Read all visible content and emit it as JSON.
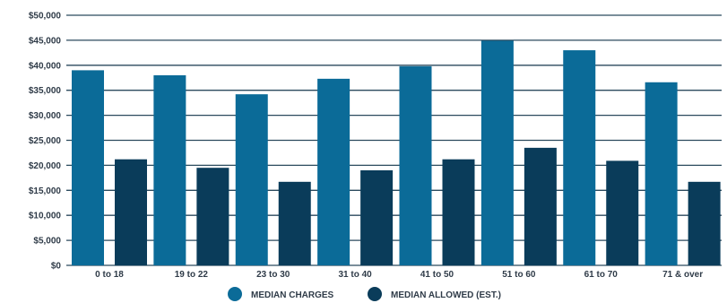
{
  "chart_data": {
    "type": "bar",
    "title": "",
    "xlabel": "",
    "ylabel": "",
    "categories": [
      "0 to 18",
      "19 to 22",
      "23 to 30",
      "31 to 40",
      "41 to 50",
      "51 to 60",
      "61 to 70",
      "71 & over"
    ],
    "series": [
      {
        "name": "MEDIAN CHARGES",
        "color": "#0b6b98",
        "values": [
          39000,
          38000,
          34200,
          37300,
          39800,
          44900,
          43000,
          36600
        ]
      },
      {
        "name": "MEDIAN ALLOWED (EST.)",
        "color": "#0a3c5a",
        "values": [
          21200,
          19500,
          16700,
          19000,
          21200,
          23500,
          20900,
          16700
        ]
      }
    ],
    "ylim": [
      0,
      50000
    ],
    "y_ticks": [
      "$0",
      "$5,000",
      "$10,000",
      "$15,000",
      "$20,000",
      "$25,000",
      "$30,000",
      "$35,000",
      "$40,000",
      "$45,000",
      "$50,000"
    ],
    "y_tick_values": [
      0,
      5000,
      10000,
      15000,
      20000,
      25000,
      30000,
      35000,
      40000,
      45000,
      50000
    ],
    "grid": true,
    "legend_position": "bottom-center",
    "gridline_color": "#2b4a5e"
  }
}
